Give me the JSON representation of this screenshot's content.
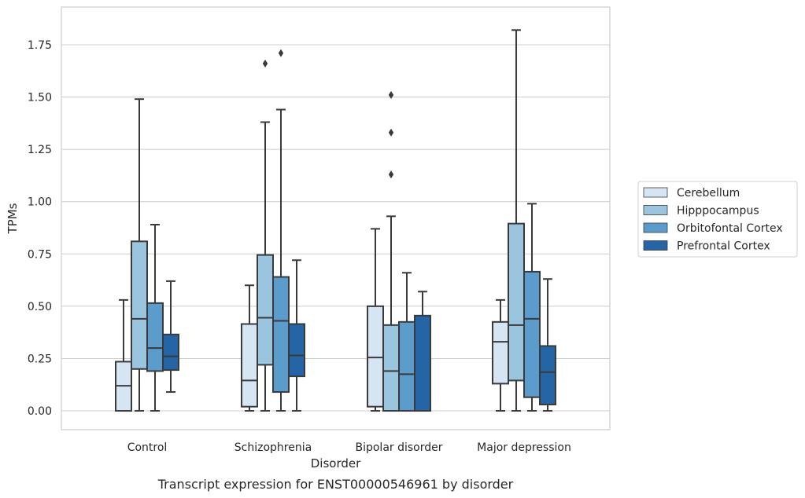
{
  "caption": "Transcript expression for ENST00000546961 by disorder",
  "chart_data": {
    "type": "box",
    "xlabel": "Disorder",
    "ylabel": "TPMs",
    "ylim": [
      -0.09,
      1.93
    ],
    "y_ticks": [
      "0.00",
      "0.25",
      "0.50",
      "0.75",
      "1.00",
      "1.25",
      "1.50",
      "1.75"
    ],
    "categories": [
      "Control",
      "Schizophrenia",
      "Bipolar disorder",
      "Major depression"
    ],
    "grid": true,
    "legend_position": "right",
    "series": [
      {
        "name": "Cerebellum",
        "color": "#d6e5f3",
        "boxes": [
          {
            "whislo": 0.0,
            "q1": 0.0,
            "med": 0.12,
            "q3": 0.235,
            "whishi": 0.53,
            "fliers": []
          },
          {
            "whislo": 0.0,
            "q1": 0.02,
            "med": 0.145,
            "q3": 0.415,
            "whishi": 0.6,
            "fliers": []
          },
          {
            "whislo": 0.0,
            "q1": 0.02,
            "med": 0.255,
            "q3": 0.5,
            "whishi": 0.87,
            "fliers": []
          },
          {
            "whislo": 0.0,
            "q1": 0.13,
            "med": 0.33,
            "q3": 0.425,
            "whishi": 0.53,
            "fliers": []
          }
        ]
      },
      {
        "name": "Hipppocampus",
        "color": "#9bc5df",
        "boxes": [
          {
            "whislo": 0.0,
            "q1": 0.2,
            "med": 0.44,
            "q3": 0.81,
            "whishi": 1.49,
            "fliers": []
          },
          {
            "whislo": 0.0,
            "q1": 0.22,
            "med": 0.445,
            "q3": 0.745,
            "whishi": 1.38,
            "fliers": [
              1.66
            ]
          },
          {
            "whislo": 0.0,
            "q1": 0.0,
            "med": 0.19,
            "q3": 0.41,
            "whishi": 0.93,
            "fliers": [
              1.13,
              1.33,
              1.51
            ]
          },
          {
            "whislo": 0.0,
            "q1": 0.145,
            "med": 0.41,
            "q3": 0.895,
            "whishi": 1.82,
            "fliers": []
          }
        ]
      },
      {
        "name": "Orbitofontal Cortex",
        "color": "#5b9ccc",
        "boxes": [
          {
            "whislo": 0.0,
            "q1": 0.19,
            "med": 0.3,
            "q3": 0.515,
            "whishi": 0.89,
            "fliers": []
          },
          {
            "whislo": 0.0,
            "q1": 0.09,
            "med": 0.43,
            "q3": 0.64,
            "whishi": 1.44,
            "fliers": [
              1.71
            ]
          },
          {
            "whislo": 0.0,
            "q1": 0.0,
            "med": 0.175,
            "q3": 0.425,
            "whishi": 0.66,
            "fliers": []
          },
          {
            "whislo": 0.0,
            "q1": 0.065,
            "med": 0.44,
            "q3": 0.665,
            "whishi": 0.99,
            "fliers": []
          }
        ]
      },
      {
        "name": "Prefrontal Cortex",
        "color": "#2565a6",
        "boxes": [
          {
            "whislo": 0.09,
            "q1": 0.195,
            "med": 0.26,
            "q3": 0.365,
            "whishi": 0.62,
            "fliers": []
          },
          {
            "whislo": 0.0,
            "q1": 0.165,
            "med": 0.265,
            "q3": 0.415,
            "whishi": 0.72,
            "fliers": []
          },
          {
            "whislo": 0.0,
            "q1": 0.0,
            "med": 0.0,
            "q3": 0.455,
            "whishi": 0.57,
            "fliers": []
          },
          {
            "whislo": 0.0,
            "q1": 0.03,
            "med": 0.185,
            "q3": 0.31,
            "whishi": 0.63,
            "fliers": []
          }
        ]
      }
    ],
    "style": {
      "grid_color": "#cccccc",
      "frame_color": "#cccccc",
      "line_color": "#3a3a3a",
      "text_color": "#262626",
      "background": "#ffffff"
    }
  }
}
